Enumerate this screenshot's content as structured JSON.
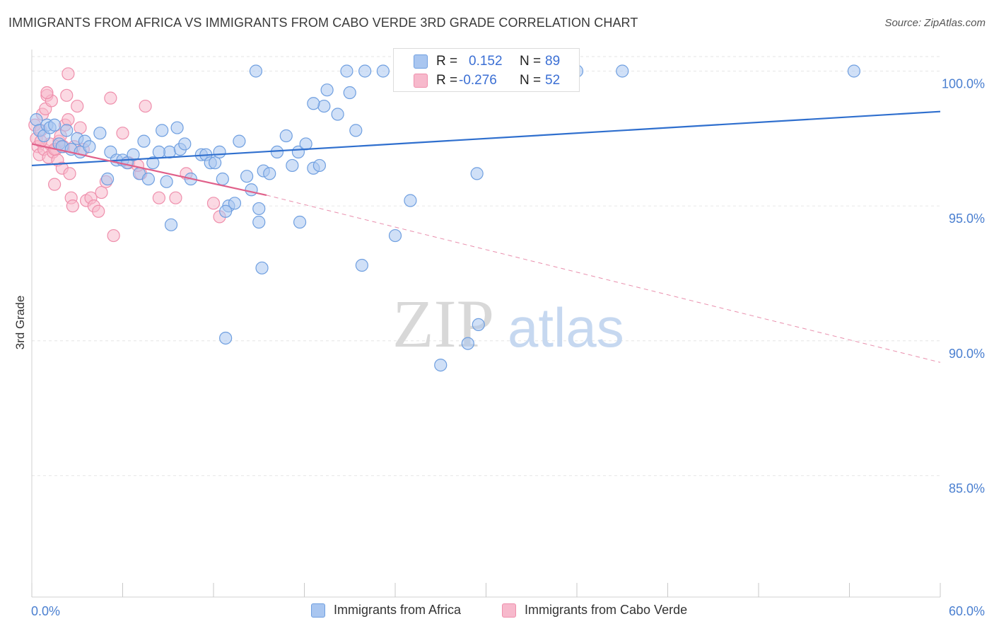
{
  "title": "IMMIGRANTS FROM AFRICA VS IMMIGRANTS FROM CABO VERDE 3RD GRADE CORRELATION CHART",
  "source": "Source: ZipAtlas.com",
  "watermark": {
    "zip": "ZIP",
    "atlas": "atlas"
  },
  "colors": {
    "africa_fill": "#a9c6f0",
    "africa_stroke": "#6f9fe0",
    "africa_line": "#2f6fce",
    "cabo_fill": "#f7b9cc",
    "cabo_stroke": "#ef8fac",
    "cabo_line": "#e0608a",
    "tick_text": "#4a7fd0"
  },
  "stats": {
    "africa": {
      "r_label": "R =",
      "r_value": "0.152",
      "n_label": "N =",
      "n_value": "89"
    },
    "cabo": {
      "r_label": "R =",
      "r_value": "-0.276",
      "n_label": "N =",
      "n_value": "52"
    }
  },
  "chart_data": {
    "type": "scatter",
    "title": "IMMIGRANTS FROM AFRICA VS IMMIGRANTS FROM CABO VERDE 3RD GRADE CORRELATION CHART",
    "xlabel": "",
    "ylabel": "3rd Grade",
    "xlim": [
      0,
      60
    ],
    "ylim": [
      80.5,
      100.8
    ],
    "x_tick_labels": [
      "0.0%",
      "60.0%"
    ],
    "y_ticks": [
      85,
      90,
      95,
      100
    ],
    "y_tick_labels": [
      "85.0%",
      "90.0%",
      "95.0%",
      "100.0%"
    ],
    "grid": true,
    "legend_position": "bottom",
    "series": [
      {
        "name": "Immigrants from Africa",
        "trend": {
          "x": [
            0,
            60
          ],
          "y": [
            96.5,
            98.5
          ],
          "dashed_after": null
        },
        "points": [
          [
            0.3,
            98.2
          ],
          [
            0.5,
            97.8
          ],
          [
            0.8,
            97.6
          ],
          [
            1.0,
            98.0
          ],
          [
            1.2,
            97.9
          ],
          [
            1.5,
            98.0
          ],
          [
            1.8,
            97.3
          ],
          [
            2.0,
            97.2
          ],
          [
            2.3,
            97.8
          ],
          [
            2.6,
            97.1
          ],
          [
            3.0,
            97.5
          ],
          [
            3.2,
            97.0
          ],
          [
            3.5,
            97.4
          ],
          [
            3.8,
            97.2
          ],
          [
            4.5,
            97.7
          ],
          [
            5.0,
            96.0
          ],
          [
            5.2,
            97.0
          ],
          [
            5.6,
            96.7
          ],
          [
            6.0,
            96.7
          ],
          [
            6.3,
            96.6
          ],
          [
            6.7,
            96.9
          ],
          [
            7.1,
            96.2
          ],
          [
            7.4,
            97.4
          ],
          [
            7.7,
            96.0
          ],
          [
            8.0,
            96.6
          ],
          [
            8.6,
            97.8
          ],
          [
            8.9,
            95.9
          ],
          [
            9.1,
            97.0
          ],
          [
            9.6,
            97.9
          ],
          [
            9.8,
            97.1
          ],
          [
            10.1,
            97.3
          ],
          [
            10.5,
            96.0
          ],
          [
            11.2,
            96.9
          ],
          [
            11.5,
            96.9
          ],
          [
            11.8,
            96.6
          ],
          [
            12.1,
            96.6
          ],
          [
            12.4,
            97.0
          ],
          [
            12.6,
            96.0
          ],
          [
            13.0,
            95.0
          ],
          [
            13.7,
            97.4
          ],
          [
            14.2,
            96.1
          ],
          [
            14.5,
            95.6
          ],
          [
            15.0,
            94.9
          ],
          [
            15.3,
            96.3
          ],
          [
            15.7,
            96.2
          ],
          [
            16.2,
            97.0
          ],
          [
            16.8,
            97.6
          ],
          [
            17.2,
            96.5
          ],
          [
            17.6,
            97.0
          ],
          [
            18.1,
            97.3
          ],
          [
            18.6,
            96.4
          ],
          [
            19.0,
            96.5
          ],
          [
            19.3,
            98.7
          ],
          [
            20.2,
            98.4
          ],
          [
            21.0,
            99.2
          ],
          [
            21.4,
            97.8
          ],
          [
            12.8,
            94.8
          ],
          [
            15.0,
            94.4
          ],
          [
            17.7,
            94.4
          ],
          [
            9.2,
            94.3
          ],
          [
            15.2,
            92.7
          ],
          [
            21.8,
            92.8
          ],
          [
            24.0,
            93.9
          ],
          [
            25.0,
            95.2
          ],
          [
            29.4,
            96.2
          ],
          [
            27.0,
            89.1
          ],
          [
            28.8,
            89.9
          ],
          [
            29.5,
            90.6
          ],
          [
            12.8,
            90.1
          ],
          [
            14.8,
            100.0
          ],
          [
            20.8,
            100.0
          ],
          [
            22.0,
            100.0
          ],
          [
            23.2,
            100.0
          ],
          [
            24.5,
            100.0
          ],
          [
            26.0,
            100.0
          ],
          [
            27.5,
            100.0
          ],
          [
            28.5,
            100.0
          ],
          [
            30.0,
            100.0
          ],
          [
            31.5,
            100.0
          ],
          [
            33.0,
            100.0
          ],
          [
            34.5,
            100.0
          ],
          [
            36.0,
            100.0
          ],
          [
            39.0,
            100.0
          ],
          [
            54.3,
            100.0
          ],
          [
            19.5,
            99.3
          ],
          [
            18.6,
            98.8
          ],
          [
            13.4,
            95.1
          ],
          [
            8.4,
            97.0
          ]
        ]
      },
      {
        "name": "Immigrants from Cabo Verde",
        "trend": {
          "x": [
            0,
            15.5
          ],
          "y": [
            97.3,
            95.4
          ],
          "dashed_to": [
            60,
            89.2
          ]
        },
        "points": [
          [
            0.2,
            98.0
          ],
          [
            0.3,
            97.5
          ],
          [
            0.4,
            97.2
          ],
          [
            0.5,
            96.9
          ],
          [
            0.6,
            97.8
          ],
          [
            0.7,
            98.4
          ],
          [
            0.8,
            97.1
          ],
          [
            0.9,
            98.6
          ],
          [
            1.0,
            99.1
          ],
          [
            1.1,
            96.8
          ],
          [
            1.2,
            97.3
          ],
          [
            1.3,
            98.9
          ],
          [
            1.4,
            97.0
          ],
          [
            1.5,
            95.8
          ],
          [
            1.6,
            97.1
          ],
          [
            1.7,
            96.7
          ],
          [
            1.8,
            97.4
          ],
          [
            1.9,
            97.6
          ],
          [
            2.0,
            96.4
          ],
          [
            2.1,
            97.2
          ],
          [
            2.2,
            98.0
          ],
          [
            2.3,
            99.1
          ],
          [
            2.4,
            98.2
          ],
          [
            2.5,
            96.2
          ],
          [
            2.6,
            95.3
          ],
          [
            2.7,
            95.0
          ],
          [
            2.8,
            97.2
          ],
          [
            3.0,
            98.7
          ],
          [
            3.2,
            97.9
          ],
          [
            3.4,
            97.1
          ],
          [
            3.6,
            95.2
          ],
          [
            3.9,
            95.3
          ],
          [
            4.1,
            95.0
          ],
          [
            4.4,
            94.8
          ],
          [
            4.6,
            95.5
          ],
          [
            4.9,
            95.9
          ],
          [
            5.2,
            99.0
          ],
          [
            5.4,
            93.9
          ],
          [
            6.0,
            97.7
          ],
          [
            6.4,
            96.6
          ],
          [
            7.2,
            96.2
          ],
          [
            7.5,
            98.7
          ],
          [
            8.4,
            95.3
          ],
          [
            9.5,
            95.3
          ],
          [
            10.2,
            96.2
          ],
          [
            12.0,
            95.1
          ],
          [
            12.4,
            94.6
          ],
          [
            1.5,
            97.1
          ],
          [
            1.0,
            99.2
          ],
          [
            0.6,
            97.4
          ],
          [
            7.0,
            96.5
          ],
          [
            2.4,
            99.9
          ]
        ]
      }
    ]
  },
  "legend": {
    "africa_label": "Immigrants from Africa",
    "cabo_label": "Immigrants from Cabo Verde"
  }
}
